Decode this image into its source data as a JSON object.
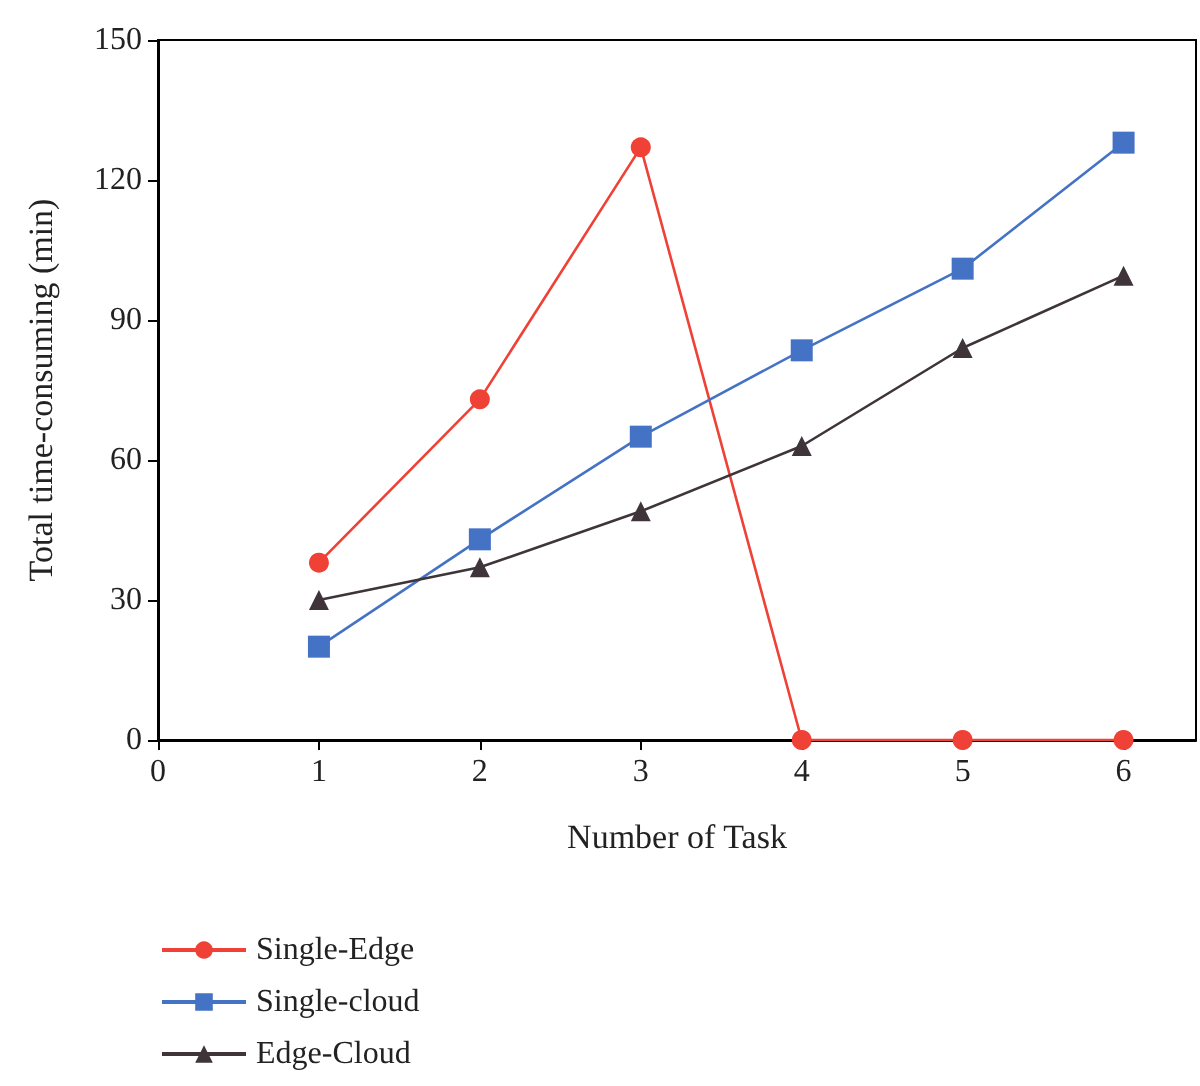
{
  "chart_data": {
    "type": "line",
    "xlabel": "Number of Task",
    "ylabel": "Total time-consuming (min)",
    "x": [
      1,
      2,
      3,
      4,
      5,
      6
    ],
    "xlim": [
      0,
      6.45
    ],
    "xticks": [
      0,
      1,
      2,
      3,
      4,
      5,
      6
    ],
    "ylim": [
      0,
      150
    ],
    "yticks": [
      0,
      30,
      60,
      90,
      120,
      150
    ],
    "grid": false,
    "legend": "bottom left",
    "series": [
      {
        "name": "Single-Edge",
        "color": "#ef4136",
        "marker": "circle",
        "values": [
          38,
          73,
          127,
          0,
          0,
          0
        ]
      },
      {
        "name": "Single-cloud",
        "color": "#4472c4",
        "marker": "square",
        "values": [
          20,
          43,
          65,
          83.5,
          101,
          128
        ]
      },
      {
        "name": "Edge-Cloud",
        "color": "#3e3439",
        "marker": "triangle",
        "values": [
          30,
          37,
          49,
          63,
          84,
          99.5
        ]
      }
    ]
  }
}
